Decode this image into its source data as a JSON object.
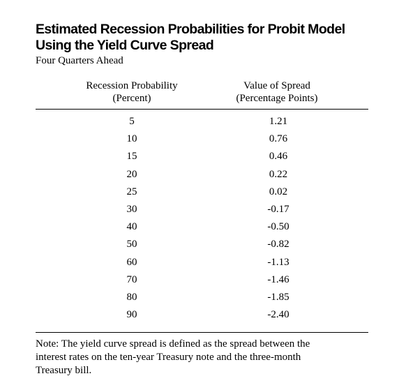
{
  "title": [
    "Estimated Recession Probabilities for Probit Model",
    "Using the Yield Curve Spread"
  ],
  "subtitle": "Four Quarters Ahead",
  "table": {
    "columns": [
      [
        "Recession Probability",
        "(Percent)"
      ],
      [
        "Value of Spread",
        "(Percentage Points)"
      ]
    ],
    "rows": [
      [
        "5",
        "1.21"
      ],
      [
        "10",
        "0.76"
      ],
      [
        "15",
        "0.46"
      ],
      [
        "20",
        "0.22"
      ],
      [
        "25",
        "0.02"
      ],
      [
        "30",
        "-0.17"
      ],
      [
        "40",
        "-0.50"
      ],
      [
        "50",
        "-0.82"
      ],
      [
        "60",
        "-1.13"
      ],
      [
        "70",
        "-1.46"
      ],
      [
        "80",
        "-1.85"
      ],
      [
        "90",
        "-2.40"
      ]
    ]
  },
  "note": [
    "Note:  The yield curve spread is defined as the spread between the",
    "interest rates on the ten-year Treasury note and the three-month",
    "Treasury bill."
  ]
}
